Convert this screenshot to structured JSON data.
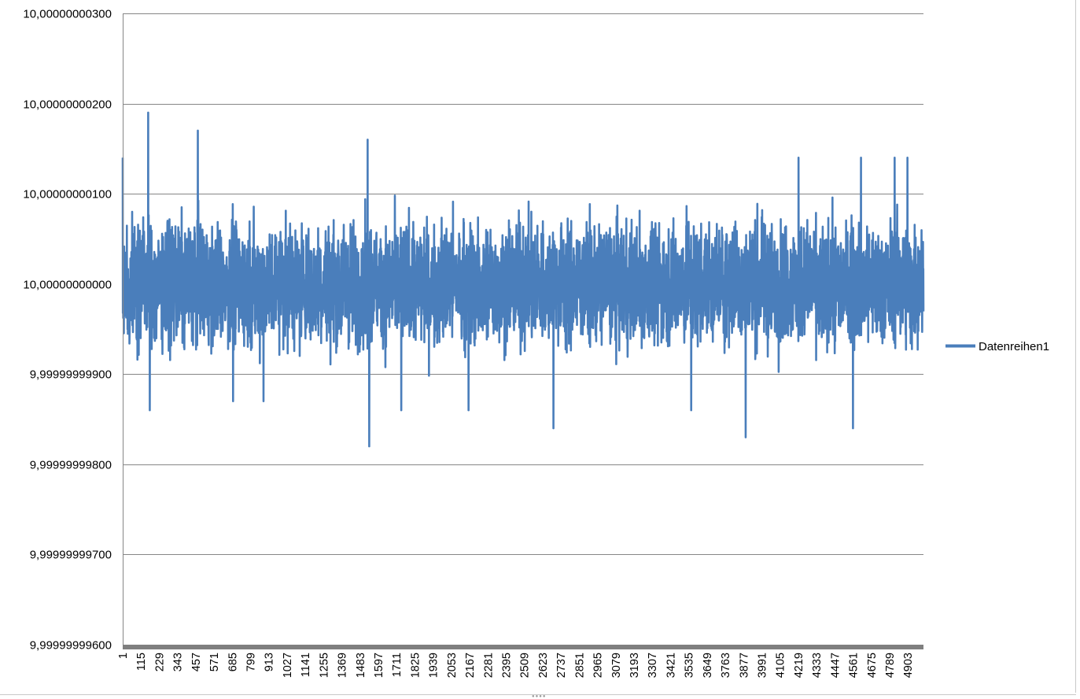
{
  "chart_data": {
    "type": "line",
    "title": "",
    "xlabel": "",
    "ylabel": "",
    "ylim": [
      9.999999996,
      10.000000003
    ],
    "y_ticks": [
      "10,00000000300",
      "10,00000000200",
      "10,00000000100",
      "10,00000000000",
      "9,99999999900",
      "9,99999999800",
      "9,99999999700",
      "9,99999999600"
    ],
    "y_tick_values": [
      10.000000003,
      10.000000002,
      10.000000001,
      10.0,
      9.999999999,
      9.999999998,
      9.999999997,
      9.999999996
    ],
    "x_range": [
      1,
      5000
    ],
    "x_ticks": [
      "1",
      "115",
      "229",
      "343",
      "457",
      "571",
      "685",
      "799",
      "913",
      "1027",
      "1141",
      "1255",
      "1369",
      "1483",
      "1597",
      "1711",
      "1825",
      "1939",
      "2053",
      "2167",
      "2281",
      "2395",
      "2509",
      "2623",
      "2737",
      "2851",
      "2965",
      "3079",
      "3193",
      "3307",
      "3421",
      "3535",
      "3649",
      "3763",
      "3877",
      "3991",
      "4105",
      "4219",
      "4333",
      "4447",
      "4561",
      "4675",
      "4789",
      "4903"
    ],
    "grid": true,
    "legend_position": "right",
    "series": [
      {
        "name": "Datenreihen1",
        "color": "#4a7ebb",
        "n_points": 5000,
        "typical_range": [
          9.9999999995,
          10.0000000005
        ],
        "max": 10.0000000019,
        "min": 9.9999999982,
        "peaks": [
          {
            "x": 160,
            "y": 10.0000000019
          },
          {
            "x": 470,
            "y": 10.0000000017
          },
          {
            "x": 1530,
            "y": 10.0000000016
          },
          {
            "x": 1740,
            "y": 10.0000000016
          },
          {
            "x": 2690,
            "y": 10.0000000017
          },
          {
            "x": 3550,
            "y": 10.0000000016
          },
          {
            "x": 4220,
            "y": 10.0000000014
          },
          {
            "x": 4610,
            "y": 10.0000000014
          },
          {
            "x": 4820,
            "y": 10.0000000014
          },
          {
            "x": 4900,
            "y": 10.0000000014
          },
          {
            "x": 1,
            "y": 10.0000000014
          }
        ],
        "troughs": [
          {
            "x": 170,
            "y": 9.9999999986
          },
          {
            "x": 1540,
            "y": 9.9999999982
          },
          {
            "x": 2690,
            "y": 9.9999999984
          },
          {
            "x": 3890,
            "y": 9.9999999983
          },
          {
            "x": 4560,
            "y": 9.9999999984
          },
          {
            "x": 3550,
            "y": 9.9999999986
          },
          {
            "x": 2160,
            "y": 9.9999999986
          },
          {
            "x": 1740,
            "y": 9.9999999986
          },
          {
            "x": 880,
            "y": 9.9999999987
          },
          {
            "x": 690,
            "y": 9.9999999987
          }
        ]
      }
    ]
  }
}
